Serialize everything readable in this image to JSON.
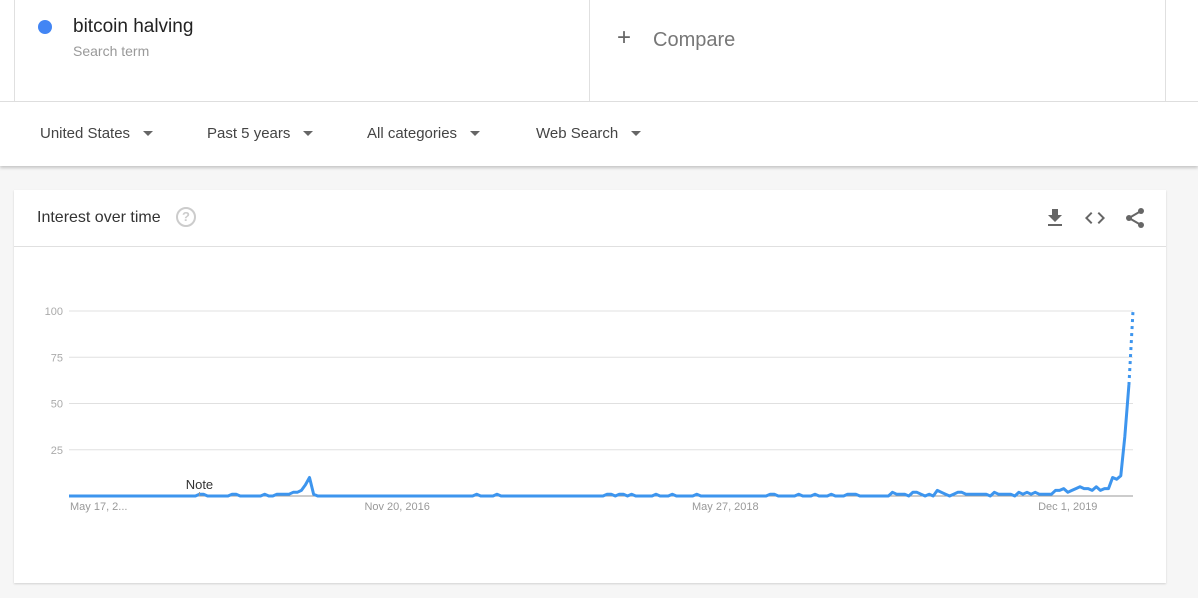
{
  "search_term": {
    "name": "bitcoin halving",
    "subtitle": "Search term",
    "color": "#4285f4"
  },
  "compare": {
    "label": "Compare",
    "icon": "plus-icon"
  },
  "filters": [
    {
      "label": "United States"
    },
    {
      "label": "Past 5 years"
    },
    {
      "label": "All categories"
    },
    {
      "label": "Web Search"
    }
  ],
  "card": {
    "title": "Interest over time",
    "actions": [
      "download-icon",
      "embed-icon",
      "share-icon"
    ]
  },
  "chart_data": {
    "type": "line",
    "title": "",
    "xlabel": "",
    "ylabel": "",
    "ylim": [
      0,
      100
    ],
    "yticks": [
      "100",
      "75",
      "50",
      "25"
    ],
    "xticks": [
      "May 17, 2...",
      "Nov 20, 2016",
      "May 27, 2018",
      "Dec 1, 2019"
    ],
    "grid": true,
    "annotation": "Note",
    "line_color": "#3d95ee",
    "last_segment_style": "dotted (partial data)",
    "series": [
      {
        "values": [
          0,
          0,
          0,
          0,
          0,
          0,
          0,
          0,
          0,
          0,
          0,
          0,
          0,
          0,
          0,
          0,
          0,
          0,
          0,
          0,
          0,
          0,
          0,
          0,
          0,
          0,
          0,
          0,
          0,
          0,
          0,
          0,
          1,
          1,
          0,
          0,
          0,
          0,
          0,
          0,
          1,
          1,
          0,
          0,
          0,
          0,
          0,
          0,
          1,
          0,
          0,
          1,
          1,
          1,
          1,
          2,
          2,
          3,
          6,
          10,
          1,
          0,
          0,
          0,
          0,
          0,
          0,
          0,
          0,
          0,
          0,
          0,
          0,
          0,
          0,
          0,
          0,
          0,
          0,
          0,
          0,
          0,
          0,
          0,
          0,
          0,
          0,
          0,
          0,
          0,
          0,
          0,
          0,
          0,
          0,
          0,
          0,
          0,
          0,
          0,
          1,
          0,
          0,
          0,
          0,
          1,
          0,
          0,
          0,
          0,
          0,
          0,
          0,
          0,
          0,
          0,
          0,
          0,
          0,
          0,
          0,
          0,
          0,
          0,
          0,
          0,
          0,
          0,
          0,
          0,
          0,
          0,
          1,
          1,
          0,
          1,
          1,
          0,
          1,
          0,
          0,
          0,
          0,
          0,
          1,
          0,
          0,
          0,
          1,
          0,
          0,
          0,
          0,
          0,
          1,
          0,
          0,
          0,
          0,
          0,
          0,
          0,
          0,
          0,
          0,
          0,
          0,
          0,
          0,
          0,
          0,
          0,
          1,
          1,
          0,
          0,
          0,
          0,
          0,
          1,
          0,
          0,
          0,
          1,
          0,
          0,
          0,
          1,
          0,
          0,
          0,
          1,
          1,
          1,
          0,
          0,
          0,
          0,
          0,
          0,
          0,
          0,
          2,
          1,
          1,
          1,
          0,
          2,
          2,
          1,
          0,
          1,
          0,
          3,
          2,
          1,
          0,
          1,
          2,
          2,
          1,
          1,
          1,
          1,
          1,
          1,
          0,
          2,
          1,
          1,
          1,
          1,
          0,
          2,
          1,
          2,
          1,
          2,
          1,
          1,
          1,
          1,
          3,
          3,
          4,
          2,
          3,
          4,
          5,
          4,
          4,
          3,
          5,
          3,
          4,
          4,
          10,
          9,
          11,
          32,
          60,
          100
        ]
      }
    ]
  }
}
